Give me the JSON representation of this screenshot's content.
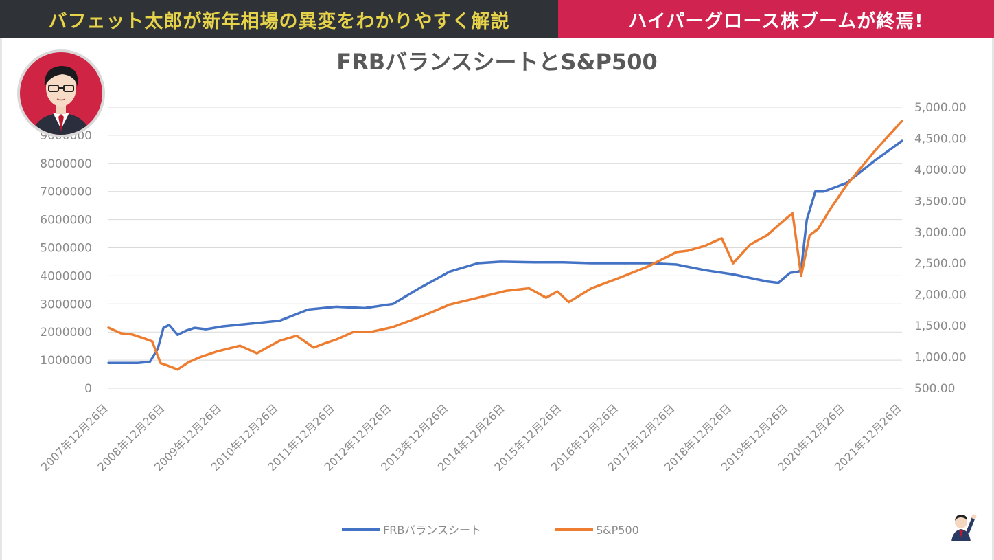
{
  "header": {
    "left_title": "バフェット太郎が新年相場の異変をわかりやすく解説",
    "right_title": "ハイパーグロース株ブームが終焉!"
  },
  "colors": {
    "frb": "#4472c4",
    "sp500": "#ed7d31",
    "banner_left_bg": "#2f3337",
    "banner_left_text": "#e7d34a",
    "banner_right_bg": "#d0234f"
  },
  "chart_data": {
    "type": "line",
    "title": "FRBバランスシートとS&P500",
    "x_tick_labels": [
      "2007年12月26日",
      "2008年12月26日",
      "2009年12月26日",
      "2010年12月26日",
      "2011年12月26日",
      "2012年12月26日",
      "2013年12月26日",
      "2014年12月26日",
      "2015年12月26日",
      "2016年12月26日",
      "2017年12月26日",
      "2018年12月26日",
      "2019年12月26日",
      "2020年12月26日",
      "2021年12月26日"
    ],
    "x_range": [
      2007.98,
      2021.98
    ],
    "y_left": {
      "ticks": [
        "0",
        "1000000",
        "2000000",
        "3000000",
        "4000000",
        "5000000",
        "6000000",
        "7000000",
        "8000000",
        "9000000"
      ],
      "range": [
        0,
        10000000
      ]
    },
    "y_right": {
      "ticks": [
        "500.00",
        "1,000.00",
        "1,500.00",
        "2,000.00",
        "2,500.00",
        "3,000.00",
        "3,500.00",
        "4,000.00",
        "4,500.00",
        "5,000.00"
      ],
      "range": [
        500,
        5000
      ]
    },
    "grid": true,
    "legend_position": "bottom",
    "series": [
      {
        "name": "FRBバランスシート",
        "axis": "left",
        "x": [
          2007.98,
          2008.5,
          2008.71,
          2008.85,
          2008.95,
          2009.05,
          2009.2,
          2009.35,
          2009.5,
          2009.7,
          2010.0,
          2010.5,
          2011.0,
          2011.5,
          2012.0,
          2012.5,
          2013.0,
          2013.5,
          2014.0,
          2014.5,
          2014.9,
          2015.5,
          2016.0,
          2016.5,
          2017.0,
          2017.5,
          2018.0,
          2018.5,
          2019.0,
          2019.6,
          2019.8,
          2020.0,
          2020.15,
          2020.2,
          2020.3,
          2020.45,
          2020.6,
          2021.0,
          2021.5,
          2021.98
        ],
        "y": [
          900000,
          900000,
          940000,
          1400000,
          2150000,
          2250000,
          1900000,
          2050000,
          2150000,
          2100000,
          2200000,
          2300000,
          2400000,
          2800000,
          2900000,
          2850000,
          3000000,
          3600000,
          4150000,
          4450000,
          4500000,
          4480000,
          4480000,
          4450000,
          4450000,
          4450000,
          4400000,
          4200000,
          4050000,
          3800000,
          3750000,
          4100000,
          4150000,
          4200000,
          6000000,
          7000000,
          7000000,
          7300000,
          8100000,
          8800000
        ]
      },
      {
        "name": "S&P500",
        "axis": "right",
        "x": [
          2007.98,
          2008.2,
          2008.4,
          2008.6,
          2008.75,
          2008.9,
          2009.0,
          2009.2,
          2009.4,
          2009.6,
          2009.9,
          2010.3,
          2010.6,
          2011.0,
          2011.3,
          2011.6,
          2011.8,
          2012.0,
          2012.3,
          2012.6,
          2013.0,
          2013.5,
          2014.0,
          2014.5,
          2015.0,
          2015.4,
          2015.7,
          2015.9,
          2016.1,
          2016.5,
          2017.0,
          2017.5,
          2018.0,
          2018.2,
          2018.5,
          2018.8,
          2019.0,
          2019.3,
          2019.6,
          2019.95,
          2020.05,
          2020.2,
          2020.35,
          2020.5,
          2020.7,
          2021.0,
          2021.5,
          2021.98
        ],
        "y": [
          1470,
          1380,
          1360,
          1300,
          1250,
          900,
          870,
          800,
          920,
          1000,
          1090,
          1180,
          1060,
          1260,
          1340,
          1150,
          1220,
          1280,
          1400,
          1400,
          1480,
          1650,
          1840,
          1950,
          2060,
          2100,
          1950,
          2050,
          1880,
          2100,
          2270,
          2450,
          2680,
          2700,
          2780,
          2900,
          2500,
          2800,
          2950,
          3230,
          3300,
          2300,
          2950,
          3050,
          3350,
          3750,
          4300,
          4780
        ]
      }
    ]
  }
}
